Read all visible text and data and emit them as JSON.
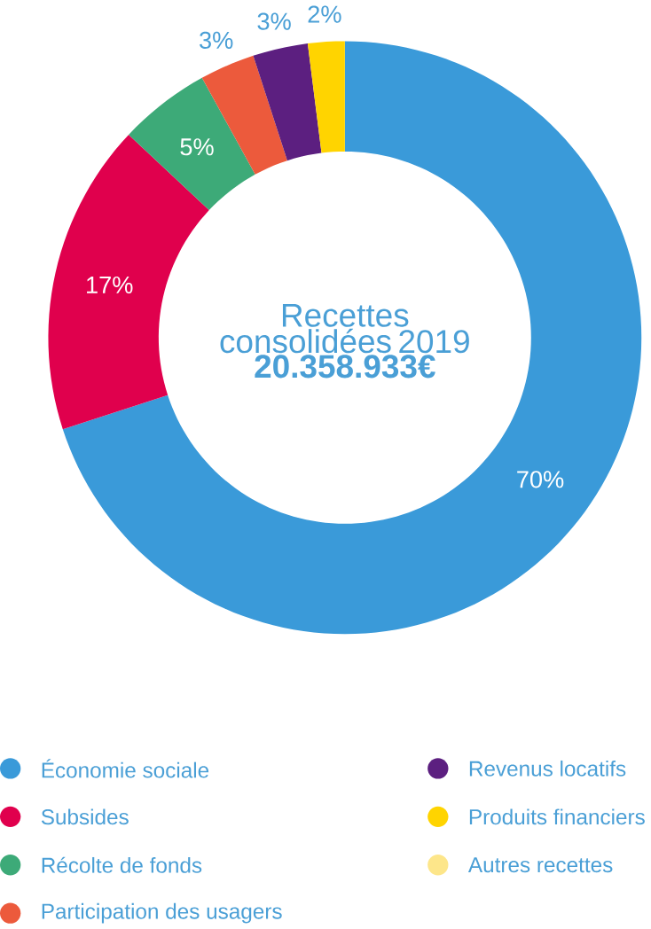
{
  "chart_data": {
    "type": "donut",
    "title": "Recettes consolidées 2019",
    "subtitle": "**20.358.933€**",
    "categories": [
      "Économie sociale",
      "Subsides",
      "Récolte de fonds",
      "Participation des usagers",
      "Revenus locatifs",
      "Produits financiers",
      "Autres recettes"
    ],
    "values": [
      70,
      17,
      5,
      3,
      3,
      2,
      0
    ],
    "value_labels": [
      "70%",
      "17%",
      "5%",
      "3%",
      "3%",
      "2%",
      null
    ],
    "colors": [
      "#3a9ad9",
      "#e0004d",
      "#3daa78",
      "#ec5a3c",
      "#5c1f80",
      "#ffd400",
      "#fde68a"
    ],
    "legend": "bottom"
  }
}
